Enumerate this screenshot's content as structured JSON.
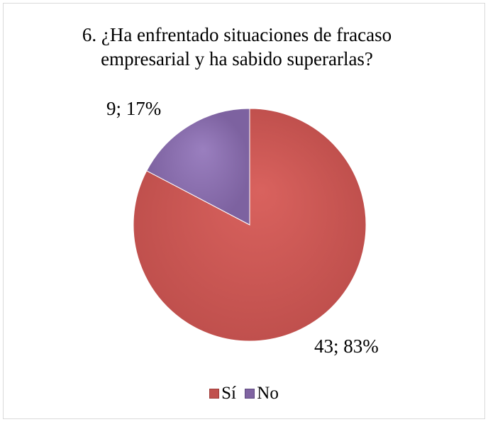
{
  "chart_data": {
    "type": "pie",
    "title_lines": [
      "6. ¿Ha enfrentado situaciones de fracaso",
      "empresarial y ha sabido superarlas?"
    ],
    "categories": [
      "Sí",
      "No"
    ],
    "values": [
      43,
      9
    ],
    "data_labels": [
      "43; 83%",
      "9; 17%"
    ],
    "colors": [
      "#c0504d",
      "#8064a2"
    ],
    "legend_position": "bottom",
    "legend": [
      "Sí",
      "No"
    ]
  }
}
